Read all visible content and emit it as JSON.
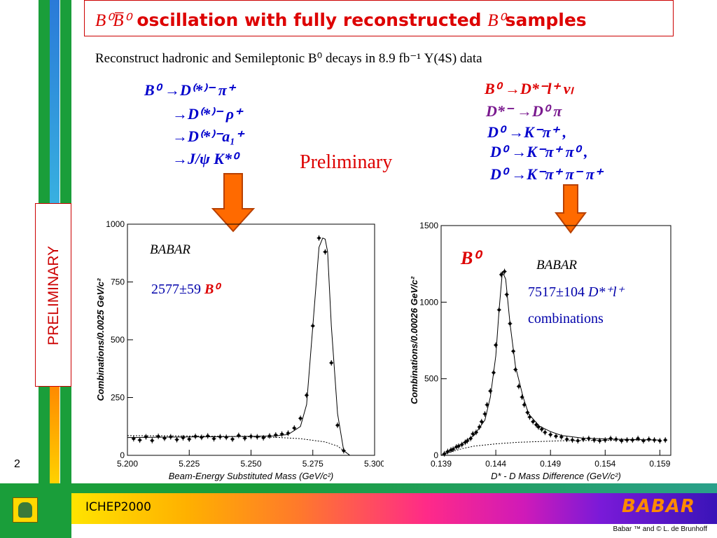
{
  "page_number": "2",
  "title": {
    "text": "oscillation with fully reconstructed",
    "text_end": "samples",
    "sym_pair": "B⁰B̅⁰",
    "sym_b0": "B⁰"
  },
  "subtitle": "Reconstruct hadronic and Semileptonic B⁰ decays in 8.9 fb⁻¹ Υ(4S) data",
  "left_decays": [
    "B⁰ →D⁽*⁾⁻ π⁺",
    "→D⁽*⁾⁻ ρ⁺",
    "→D⁽*⁾⁻a₁⁺",
    "→J/ψ K*⁰"
  ],
  "right_decays": {
    "line1": "B⁰ →D*⁻l⁺ νₗ",
    "line2": "D*⁻ →D⁰ π",
    "line3": "D⁰ →K⁻π⁺ ,",
    "line4": "D⁰ →K⁻π⁺ π⁰ ,",
    "line5": "D⁰ →K⁻π⁺ π⁻ π⁺"
  },
  "preliminary_label": "Preliminary",
  "side_label": "PRELIMINARY",
  "footer": {
    "conference": "ICHEP2000",
    "logo": "BABAR",
    "copyright": "Babar ™ and © L. de Brunhoff"
  },
  "colors": {
    "title_red": "#dd0000",
    "decay_blue": "#0000cc",
    "decay_red": "#dd0000",
    "decay_purple": "#7a1a8f",
    "arrow_orange": "#ff6a00",
    "bar_green": "#1a9e3a"
  },
  "chart_data": [
    {
      "type": "scatter",
      "title": "",
      "xlabel": "Beam-Energy Substituted Mass (GeV/c²)",
      "ylabel": "Combinations/0.0025 GeV/c²",
      "xlim": [
        5.2,
        5.3
      ],
      "ylim": [
        0,
        1000
      ],
      "x_ticks": [
        "5.200",
        "5.225",
        "5.250",
        "5.275",
        "5.300"
      ],
      "y_ticks": [
        "0",
        "250",
        "500",
        "750",
        "1000"
      ],
      "babar_label": "BABAR",
      "annotation": "2577±59",
      "annotation_symbol": "B⁰",
      "series": [
        {
          "type": "points",
          "x": [
            5.2025,
            5.205,
            5.2075,
            5.21,
            5.2125,
            5.215,
            5.2175,
            5.22,
            5.2225,
            5.225,
            5.2275,
            5.23,
            5.2325,
            5.235,
            5.2375,
            5.24,
            5.2425,
            5.245,
            5.2475,
            5.25,
            5.2525,
            5.255,
            5.2575,
            5.26,
            5.2625,
            5.265,
            5.2675,
            5.27,
            5.2725,
            5.275,
            5.2775,
            5.28,
            5.2825,
            5.285,
            5.2875
          ],
          "y": [
            72,
            66,
            80,
            64,
            82,
            74,
            80,
            68,
            76,
            70,
            82,
            78,
            84,
            72,
            80,
            78,
            70,
            86,
            74,
            82,
            80,
            76,
            84,
            88,
            92,
            96,
            118,
            160,
            260,
            560,
            940,
            880,
            400,
            130,
            20
          ]
        },
        {
          "type": "fit_curve",
          "x": [
            5.2,
            5.21,
            5.22,
            5.23,
            5.24,
            5.25,
            5.26,
            5.265,
            5.27,
            5.2725,
            5.275,
            5.2775,
            5.279,
            5.28,
            5.281,
            5.2825,
            5.285,
            5.2875,
            5.29
          ],
          "y": [
            77,
            78,
            79,
            80,
            81,
            82,
            84,
            90,
            125,
            220,
            560,
            900,
            940,
            935,
            880,
            560,
            180,
            20,
            0
          ]
        },
        {
          "type": "background",
          "x": [
            5.2,
            5.22,
            5.24,
            5.26,
            5.27,
            5.28,
            5.285,
            5.29
          ],
          "y": [
            85,
            84,
            82,
            78,
            72,
            58,
            40,
            0
          ]
        }
      ]
    },
    {
      "type": "scatter",
      "title": "",
      "xlabel": "D* - D Mass Difference (GeV/c²)",
      "ylabel": "Combinations/0.00026 GeV/c²",
      "xlim": [
        0.139,
        0.16
      ],
      "ylim": [
        0,
        1500
      ],
      "x_ticks": [
        "0.139",
        "0.144",
        "0.149",
        "0.154",
        "0.159"
      ],
      "y_ticks": [
        "0",
        "500",
        "1000",
        "1500"
      ],
      "peak_label": "B⁰",
      "babar_label": "BABAR",
      "annotation": "7517±104",
      "annotation_symbol": "D*⁺l⁺",
      "annotation_line2": "combinations",
      "series": [
        {
          "type": "points",
          "x": [
            0.1393,
            0.1396,
            0.1399,
            0.1401,
            0.1404,
            0.1406,
            0.1409,
            0.1412,
            0.1414,
            0.1417,
            0.1419,
            0.1422,
            0.1425,
            0.1427,
            0.143,
            0.1432,
            0.1435,
            0.1438,
            0.144,
            0.1443,
            0.1445,
            0.1448,
            0.145,
            0.1453,
            0.1456,
            0.1458,
            0.1461,
            0.1464,
            0.1466,
            0.1469,
            0.1471,
            0.1474,
            0.1477,
            0.1479,
            0.1482,
            0.1485,
            0.149,
            0.1495,
            0.15,
            0.1505,
            0.151,
            0.1515,
            0.152,
            0.1525,
            0.153,
            0.1535,
            0.154,
            0.1545,
            0.155,
            0.1555,
            0.156,
            0.1565,
            0.157,
            0.1575,
            0.158,
            0.1585,
            0.159,
            0.1595
          ],
          "y": [
            10,
            25,
            35,
            40,
            55,
            60,
            70,
            85,
            95,
            110,
            140,
            150,
            185,
            220,
            270,
            330,
            420,
            540,
            720,
            950,
            1180,
            1200,
            1050,
            860,
            680,
            560,
            450,
            380,
            330,
            280,
            250,
            220,
            200,
            185,
            170,
            150,
            135,
            125,
            120,
            105,
            100,
            95,
            105,
            110,
            100,
            95,
            100,
            110,
            105,
            95,
            100,
            100,
            110,
            95,
            105,
            100,
            95,
            100
          ]
        },
        {
          "type": "fit_curve",
          "x": [
            0.139,
            0.14,
            0.141,
            0.142,
            0.143,
            0.1435,
            0.144,
            0.1443,
            0.1446,
            0.1449,
            0.1453,
            0.1458,
            0.1465,
            0.147,
            0.148,
            0.149,
            0.15,
            0.152,
            0.155,
            0.159
          ],
          "y": [
            0,
            40,
            80,
            130,
            230,
            380,
            650,
            950,
            1200,
            1150,
            860,
            580,
            380,
            270,
            190,
            155,
            130,
            112,
            105,
            100
          ]
        },
        {
          "type": "background",
          "x": [
            0.139,
            0.14,
            0.141,
            0.142,
            0.144,
            0.146,
            0.148,
            0.15,
            0.152,
            0.155,
            0.159
          ],
          "y": [
            0,
            25,
            45,
            60,
            75,
            85,
            90,
            95,
            97,
            99,
            100
          ]
        }
      ]
    }
  ]
}
